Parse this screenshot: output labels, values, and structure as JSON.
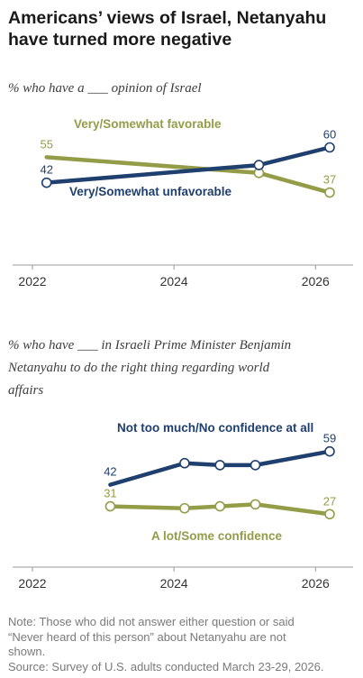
{
  "header": {
    "title_line1": "Americans’ views of Israel, Netanyahu",
    "title_line2": "have turned more negative"
  },
  "colors": {
    "green": "#949c48",
    "navy": "#1f3f6e",
    "axis": "#999999",
    "text": "#3d3d3d"
  },
  "chart_data": [
    {
      "type": "line",
      "subtitle": "% who have a ___ opinion of Israel",
      "x_ticks": [
        2022,
        2024,
        2026
      ],
      "xlim": [
        2022,
        2026.2
      ],
      "ylim": [
        0,
        80
      ],
      "series": [
        {
          "name": "Very/Somewhat favorable",
          "color": "#949c48",
          "points": [
            {
              "x": 2022.2,
              "y": 55,
              "label": "55",
              "marker": false
            },
            {
              "x": 2025.2,
              "y": 47,
              "label": "",
              "marker": true
            },
            {
              "x": 2026.2,
              "y": 37,
              "label": "37",
              "marker": true
            }
          ]
        },
        {
          "name": "Very/Somewhat unfavorable",
          "color": "#1f3f6e",
          "points": [
            {
              "x": 2022.2,
              "y": 42,
              "label": "42",
              "marker": true
            },
            {
              "x": 2025.2,
              "y": 51,
              "label": "",
              "marker": true
            },
            {
              "x": 2026.2,
              "y": 60,
              "label": "60",
              "marker": true
            }
          ]
        }
      ]
    },
    {
      "type": "line",
      "subtitle_lines": [
        "% who have ___ in Israeli Prime Minister Benjamin",
        "Netanyahu to do the right thing regarding world",
        "affairs"
      ],
      "x_ticks": [
        2022,
        2024,
        2026
      ],
      "xlim": [
        2022,
        2026.2
      ],
      "ylim": [
        0,
        80
      ],
      "series": [
        {
          "name": "Not too much/No confidence at all",
          "color": "#1f3f6e",
          "points": [
            {
              "x": 2023.1,
              "y": 42,
              "label": "42",
              "marker": false
            },
            {
              "x": 2024.15,
              "y": 53,
              "label": "",
              "marker": true
            },
            {
              "x": 2024.65,
              "y": 52,
              "label": "",
              "marker": true
            },
            {
              "x": 2025.15,
              "y": 52,
              "label": "",
              "marker": true
            },
            {
              "x": 2026.2,
              "y": 59,
              "label": "59",
              "marker": true
            }
          ]
        },
        {
          "name": "A lot/Some confidence",
          "color": "#949c48",
          "points": [
            {
              "x": 2023.1,
              "y": 31,
              "label": "31",
              "marker": true
            },
            {
              "x": 2024.15,
              "y": 30,
              "label": "",
              "marker": true
            },
            {
              "x": 2024.65,
              "y": 31,
              "label": "",
              "marker": true
            },
            {
              "x": 2025.15,
              "y": 32,
              "label": "",
              "marker": true
            },
            {
              "x": 2026.2,
              "y": 27,
              "label": "27",
              "marker": true
            }
          ]
        }
      ]
    }
  ],
  "footer": {
    "note_line1": "Note: Those who did not answer either question or said",
    "note_line2": "“Never heard of this person” about Netanyahu are not",
    "note_line3": "shown.",
    "source": "Source: Survey of U.S. adults conducted March 23-29, 2026."
  }
}
